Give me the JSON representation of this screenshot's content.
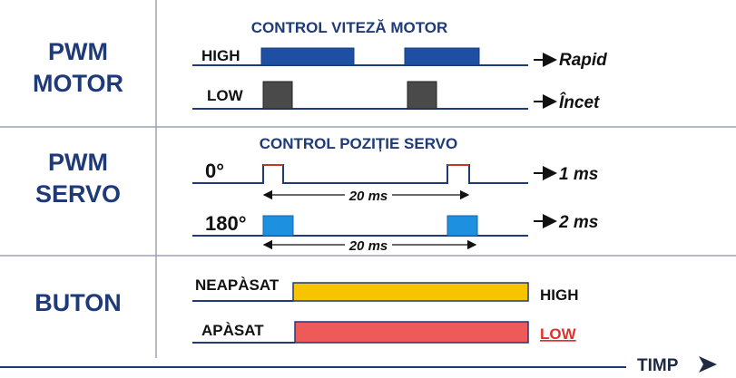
{
  "sections": [
    {
      "label": [
        "PWM",
        "MOTOR"
      ],
      "title": "CONTROL VITEZĂ MOTOR",
      "rows": [
        {
          "label": "HIGH",
          "result": "Rapid"
        },
        {
          "label": "LOW",
          "result": "Încet"
        }
      ]
    },
    {
      "label": [
        "PWM",
        "SERVO"
      ],
      "title": "CONTROL POZIȚIE SERVO",
      "rows": [
        {
          "label": "0°",
          "result": "1 ms",
          "period": "20 ms"
        },
        {
          "label": "180°",
          "result": "2 ms",
          "period": "20 ms"
        }
      ]
    },
    {
      "label": [
        "BUTON"
      ],
      "rows": [
        {
          "label": "NEAPÀSAT",
          "result": "HIGH"
        },
        {
          "label": "APÀSAT",
          "result": "LOW"
        }
      ]
    }
  ],
  "axis": "TIMP"
}
